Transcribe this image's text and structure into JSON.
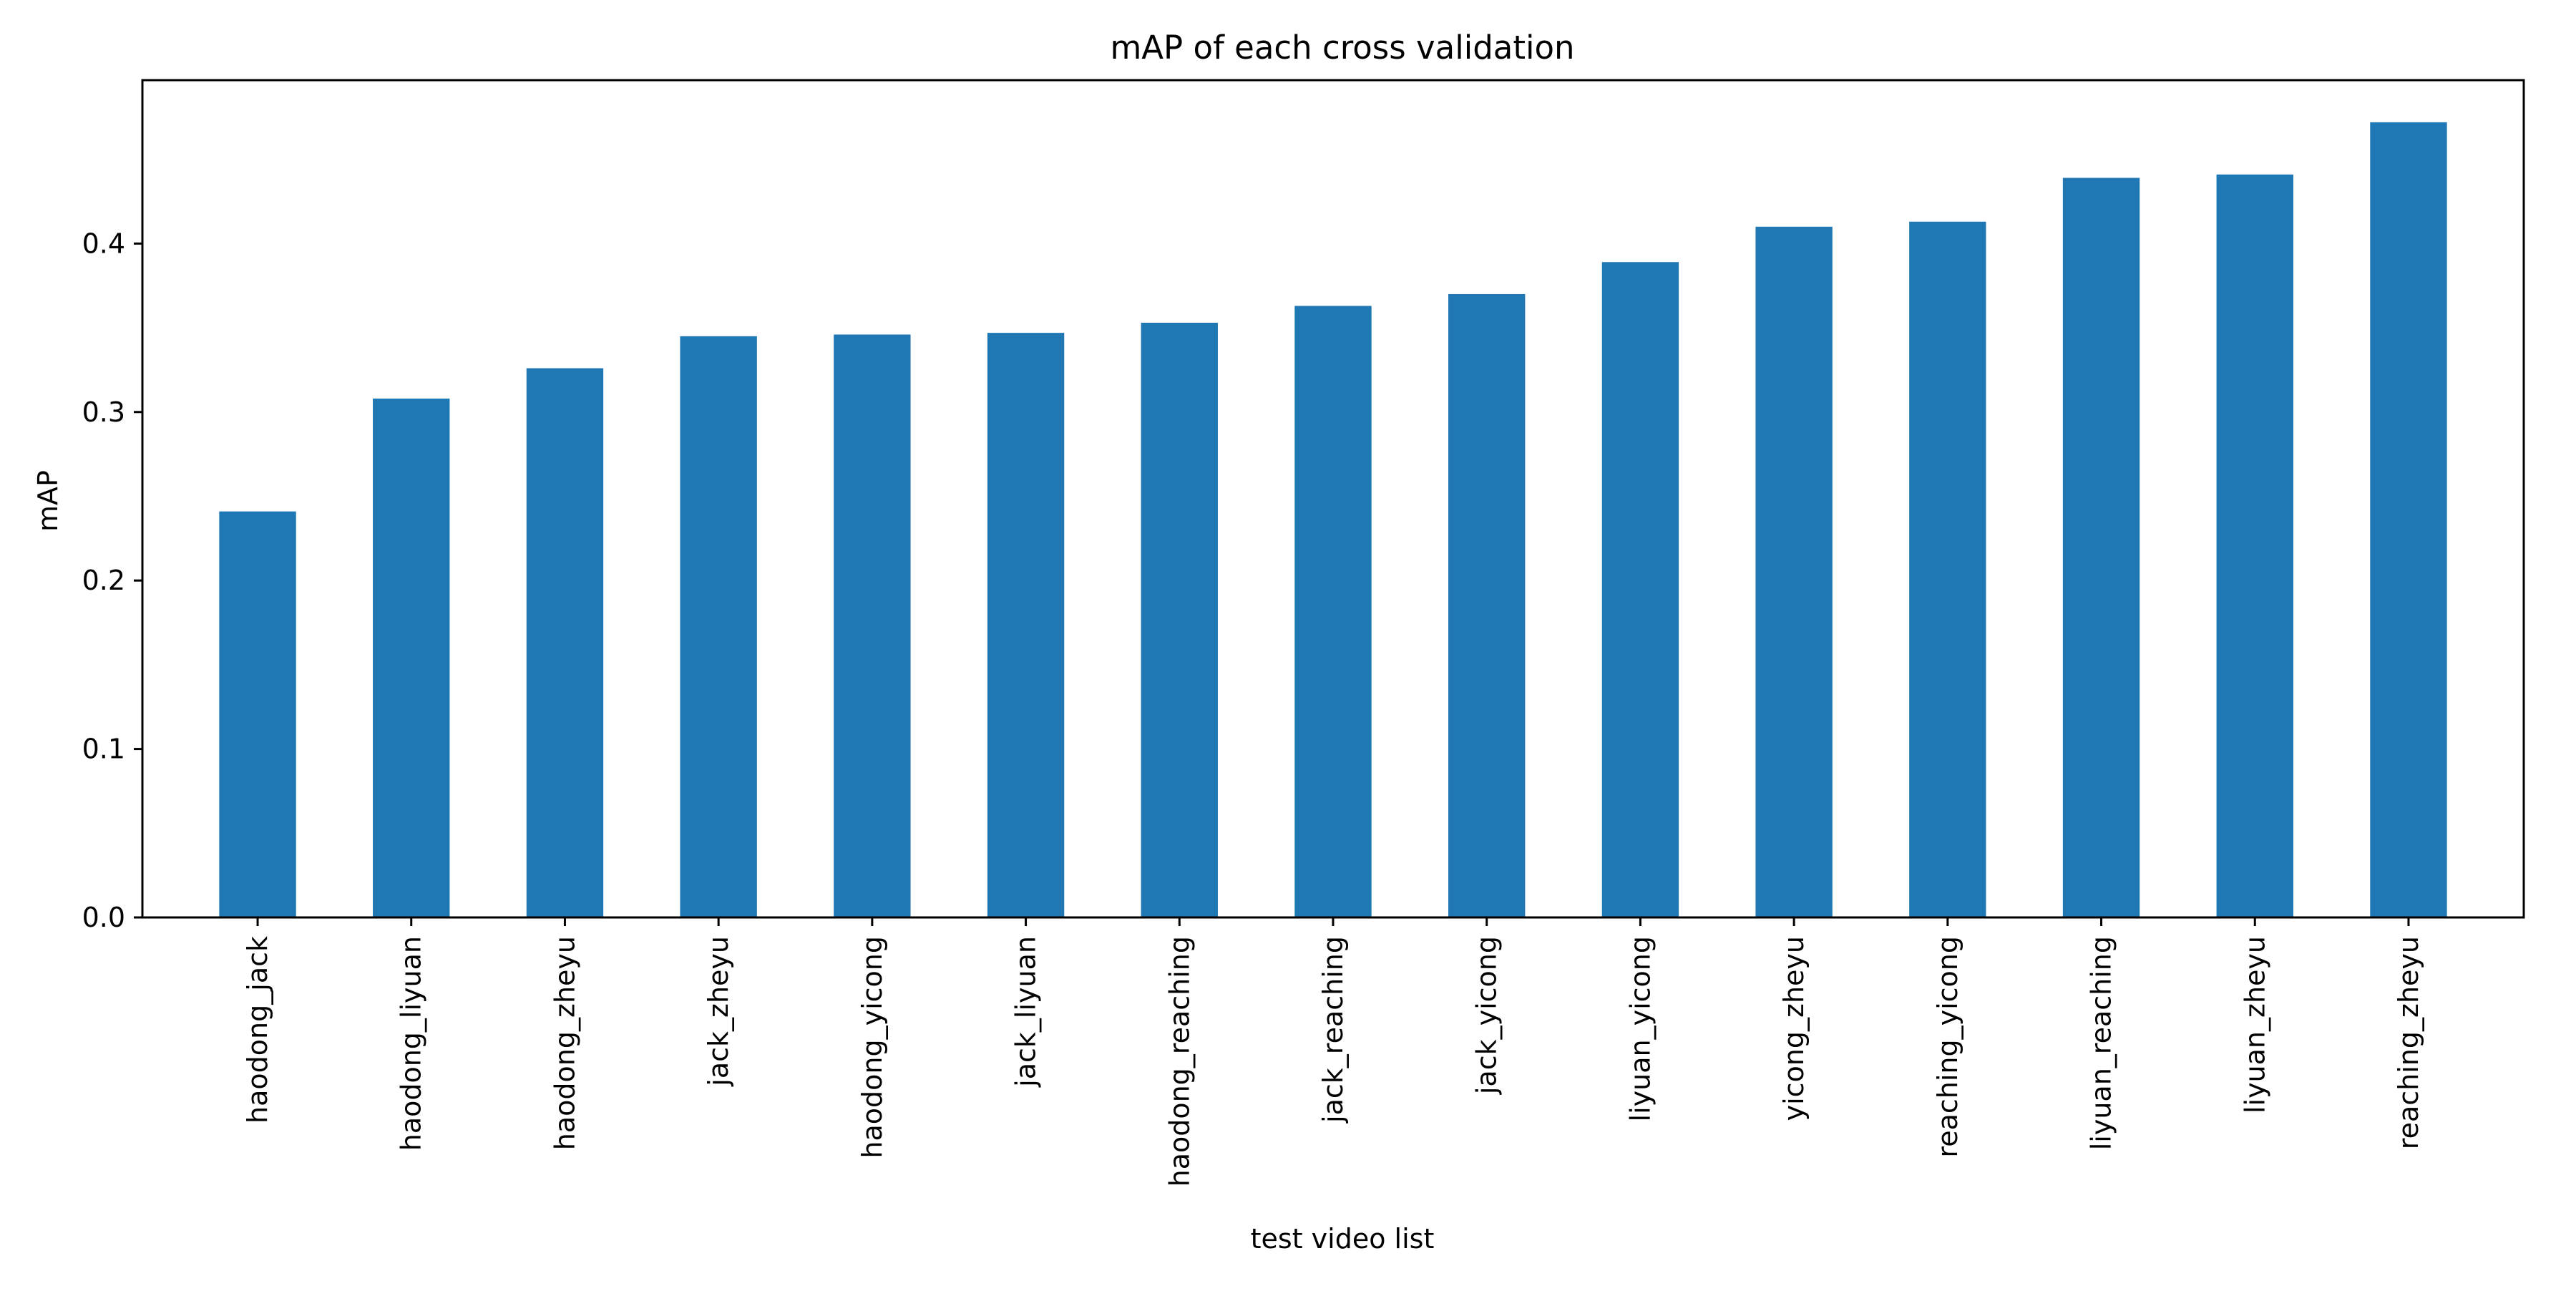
{
  "chart_data": {
    "type": "bar",
    "title": "mAP of each cross validation",
    "xlabel": "test video list",
    "ylabel": "mAP",
    "categories": [
      "haodong_jack",
      "haodong_liyuan",
      "haodong_zheyu",
      "jack_zheyu",
      "haodong_yicong",
      "jack_liyuan",
      "haodong_reaching",
      "jack_reaching",
      "jack_yicong",
      "liyuan_yicong",
      "yicong_zheyu",
      "reaching_yicong",
      "liyuan_reaching",
      "liyuan_zheyu",
      "reaching_zheyu"
    ],
    "values": [
      0.241,
      0.308,
      0.326,
      0.345,
      0.346,
      0.347,
      0.353,
      0.363,
      0.37,
      0.389,
      0.41,
      0.413,
      0.439,
      0.441,
      0.472
    ],
    "ylim": [
      0,
      0.497
    ],
    "yticks": [
      0.0,
      0.1,
      0.2,
      0.3,
      0.4
    ],
    "ytick_labels": [
      "0.0",
      "0.1",
      "0.2",
      "0.3",
      "0.4"
    ],
    "grid": false,
    "legend": "none",
    "bar_color": "#1f77b4"
  }
}
